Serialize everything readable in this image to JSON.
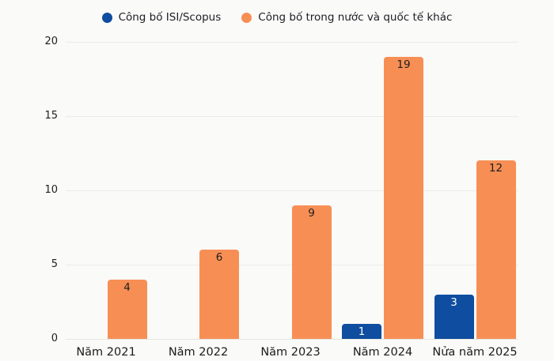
{
  "chart_data": {
    "type": "bar",
    "title": "",
    "xlabel": "",
    "ylabel": "",
    "categories": [
      "Năm 2021",
      "Năm 2022",
      "Năm 2023",
      "Năm 2024",
      "Nửa năm 2025"
    ],
    "series": [
      {
        "name": "Công bố ISI/Scopus",
        "color": "#0e4d9f",
        "label_color": "#ffffff",
        "values": [
          0,
          0,
          0,
          1,
          3
        ]
      },
      {
        "name": "Công bố trong nước và quốc tế khác",
        "color": "#f78f55",
        "label_color": "#1e1e1e",
        "values": [
          4,
          6,
          9,
          19,
          12
        ]
      }
    ],
    "ylim": [
      0,
      20
    ],
    "yticks": [
      0,
      5,
      10,
      15,
      20
    ],
    "grid": true,
    "legend_position": "top",
    "show_value_labels": true,
    "colors": {
      "background": "#fafaf8",
      "gridline": "#ebebe9",
      "axis_text": "#1d1d1d",
      "legend_text": "#1d1d26"
    }
  }
}
